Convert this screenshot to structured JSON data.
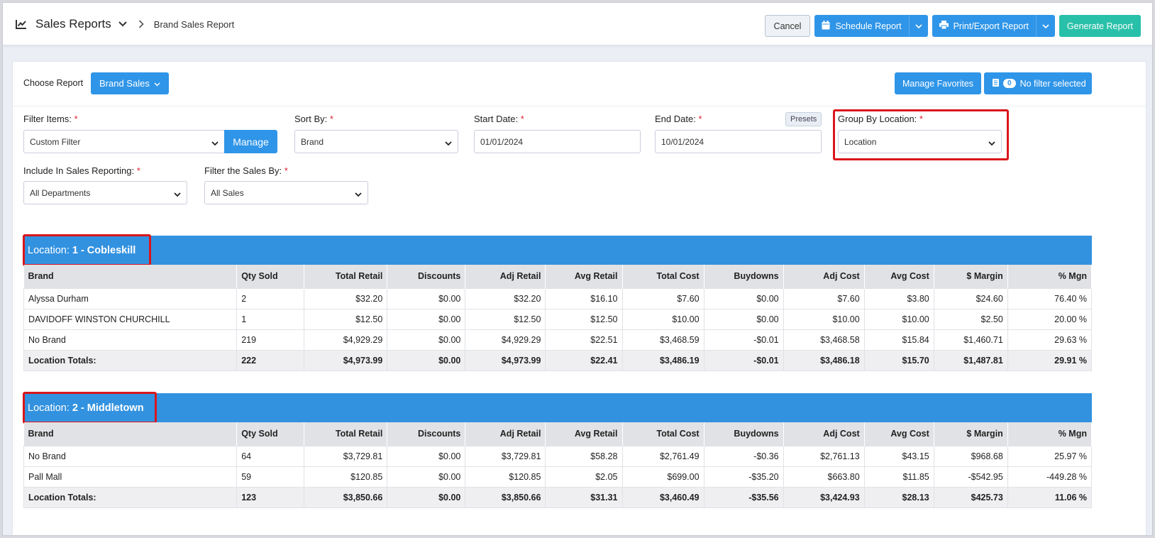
{
  "header": {
    "app_title": "Sales Reports",
    "breadcrumb": "Brand Sales Report",
    "cancel_label": "Cancel",
    "schedule_label": "Schedule Report",
    "print_label": "Print/Export Report",
    "generate_label": "Generate Report"
  },
  "toolbar": {
    "choose_report_label": "Choose Report",
    "report_dropdown_label": "Brand Sales",
    "manage_favorites_label": "Manage Favorites",
    "filter_count": "0",
    "filter_label": "No filter selected"
  },
  "filters": {
    "filter_items": {
      "label": "Filter Items:",
      "value": "Custom Filter",
      "manage_label": "Manage"
    },
    "sort_by": {
      "label": "Sort By:",
      "value": "Brand"
    },
    "start_date": {
      "label": "Start Date:",
      "value": "01/01/2024"
    },
    "end_date": {
      "label": "End Date:",
      "value": "10/01/2024",
      "presets_label": "Presets"
    },
    "group_by": {
      "label": "Group By Location:",
      "value": "Location"
    },
    "include_in": {
      "label": "Include In Sales Reporting:",
      "value": "All Departments"
    },
    "filter_sales": {
      "label": "Filter the Sales By:",
      "value": "All Sales"
    },
    "required_mark": "*"
  },
  "columns": [
    "Brand",
    "Qty Sold",
    "Total Retail",
    "Discounts",
    "Adj Retail",
    "Avg Retail",
    "Total Cost",
    "Buydowns",
    "Adj Cost",
    "Avg Cost",
    "$ Margin",
    "% Mgn"
  ],
  "locations": [
    {
      "prefix": "Location:",
      "name": "1 - Cobleskill",
      "rows": [
        [
          "Alyssa Durham",
          "2",
          "$32.20",
          "$0.00",
          "$32.20",
          "$16.10",
          "$7.60",
          "$0.00",
          "$7.60",
          "$3.80",
          "$24.60",
          "76.40 %"
        ],
        [
          "DAVIDOFF WINSTON CHURCHILL",
          "1",
          "$12.50",
          "$0.00",
          "$12.50",
          "$12.50",
          "$10.00",
          "$0.00",
          "$10.00",
          "$10.00",
          "$2.50",
          "20.00 %"
        ],
        [
          "No Brand",
          "219",
          "$4,929.29",
          "$0.00",
          "$4,929.29",
          "$22.51",
          "$3,468.59",
          "-$0.01",
          "$3,468.58",
          "$15.84",
          "$1,460.71",
          "29.63 %"
        ]
      ],
      "totals": [
        "Location Totals:",
        "222",
        "$4,973.99",
        "$0.00",
        "$4,973.99",
        "$22.41",
        "$3,486.19",
        "-$0.01",
        "$3,486.18",
        "$15.70",
        "$1,487.81",
        "29.91 %"
      ]
    },
    {
      "prefix": "Location:",
      "name": "2 - Middletown",
      "rows": [
        [
          "No Brand",
          "64",
          "$3,729.81",
          "$0.00",
          "$3,729.81",
          "$58.28",
          "$2,761.49",
          "-$0.36",
          "$2,761.13",
          "$43.15",
          "$968.68",
          "25.97 %"
        ],
        [
          "Pall Mall",
          "59",
          "$120.85",
          "$0.00",
          "$120.85",
          "$2.05",
          "$699.00",
          "-$35.20",
          "$663.80",
          "$11.85",
          "-$542.95",
          "-449.28 %"
        ]
      ],
      "totals": [
        "Location Totals:",
        "123",
        "$3,850.66",
        "$0.00",
        "$3,850.66",
        "$31.31",
        "$3,460.49",
        "-$35.56",
        "$3,424.93",
        "$28.13",
        "$425.73",
        "11.06 %"
      ]
    }
  ],
  "colors": {
    "accent": "#2f95e8",
    "teal": "#29c0a9",
    "location_bar": "#3392e0",
    "highlight": "#d9161c"
  },
  "icons": [
    "chart-line-icon",
    "chevron-down-icon",
    "chevron-right-icon",
    "calendar-icon",
    "printer-icon",
    "filter-list-icon"
  ]
}
